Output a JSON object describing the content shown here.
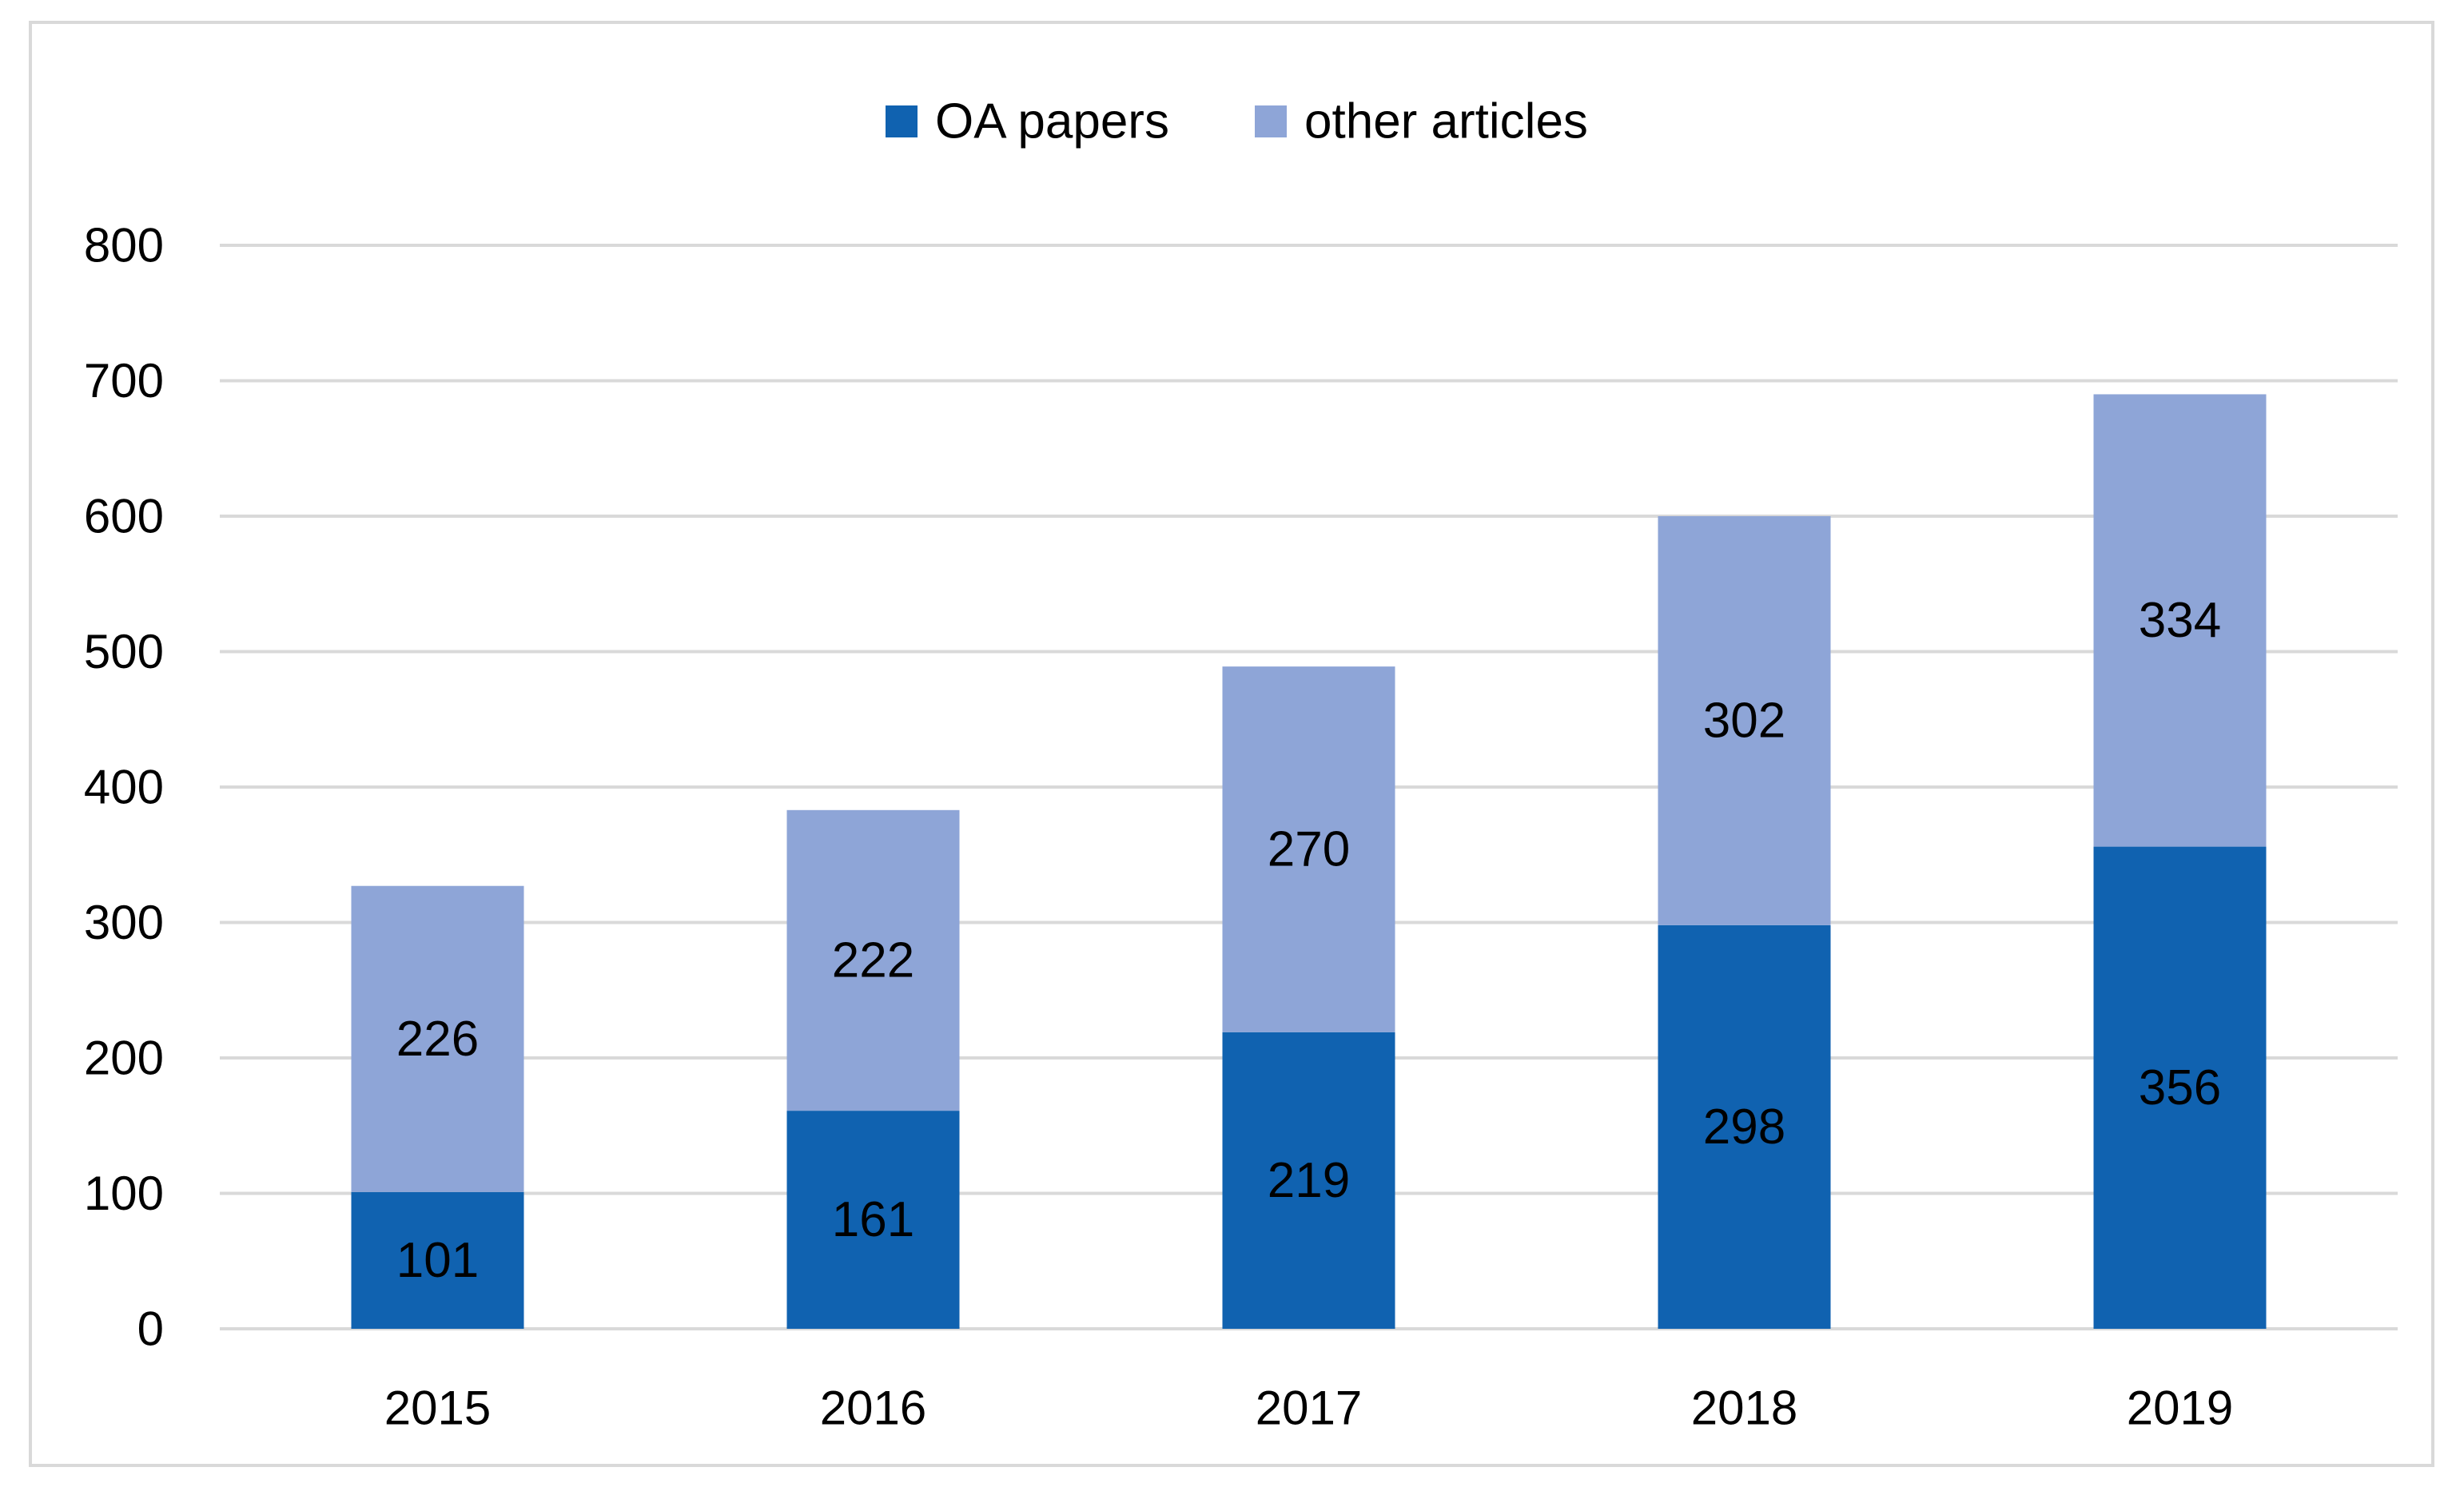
{
  "chart_data": {
    "type": "bar",
    "stacked": true,
    "title": "",
    "xlabel": "",
    "ylabel": "",
    "categories": [
      "2015",
      "2016",
      "2017",
      "2018",
      "2019"
    ],
    "series": [
      {
        "name": "OA papers",
        "color": "#1062b0",
        "values": [
          101,
          161,
          219,
          298,
          356
        ]
      },
      {
        "name": "other articles",
        "color": "#8ea5d7",
        "values": [
          226,
          222,
          270,
          302,
          334
        ]
      }
    ],
    "ylim": [
      0,
      800
    ],
    "yticks": [
      0,
      100,
      200,
      300,
      400,
      500,
      600,
      700,
      800
    ],
    "grid": true,
    "gridline_color": "#d9d9d9",
    "legend_position": "top-center"
  }
}
